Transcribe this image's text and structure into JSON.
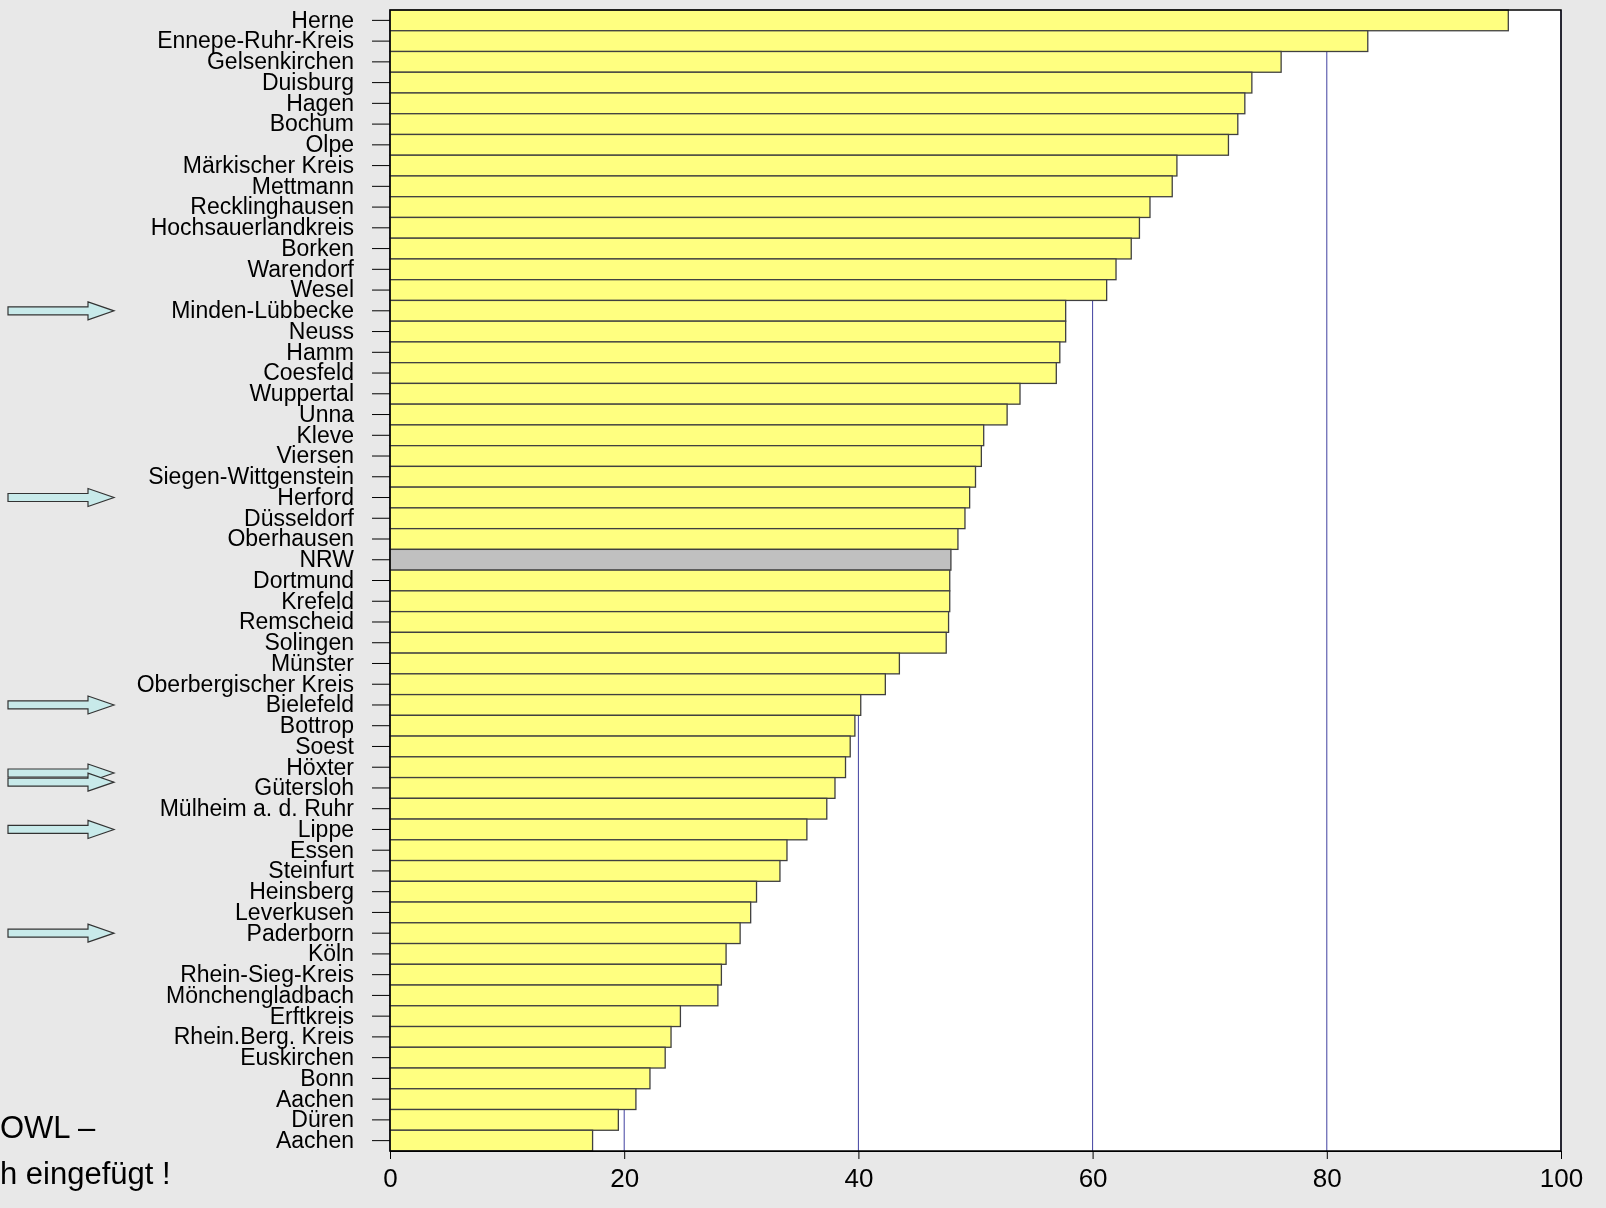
{
  "chart_data": {
    "type": "bar",
    "orientation": "horizontal",
    "categories": [
      "Herne",
      "Ennepe-Ruhr-Kreis",
      "Gelsenkirchen",
      "Duisburg",
      "Hagen",
      "Bochum",
      "Olpe",
      "Märkischer Kreis",
      "Mettmann",
      "Recklinghausen",
      "Hochsauerlandkreis",
      "Borken",
      "Warendorf",
      "Wesel",
      "Minden-Lübbecke",
      "Neuss",
      "Hamm",
      "Coesfeld",
      "Wuppertal",
      "Unna",
      "Kleve",
      "Viersen",
      "Siegen-Wittgenstein",
      "Herford",
      "Düsseldorf",
      "Oberhausen",
      "NRW",
      "Dortmund",
      "Krefeld",
      "Remscheid",
      "Solingen",
      "Münster",
      "Oberbergischer Kreis",
      "Bielefeld",
      "Bottrop",
      "Soest",
      "Höxter",
      "Gütersloh",
      "Mülheim a. d. Ruhr",
      "Lippe",
      "Essen",
      "Steinfurt",
      "Heinsberg",
      "Leverkusen",
      "Paderborn",
      "Köln",
      "Rhein-Sieg-Kreis",
      "Mönchengladbach",
      "Erftkreis",
      "Rhein.Berg. Kreis",
      "Euskirchen",
      "Bonn",
      "Aachen",
      "Düren",
      "Aachen"
    ],
    "values": [
      95.5,
      83.5,
      76.1,
      73.6,
      73.0,
      72.4,
      71.6,
      67.2,
      66.8,
      64.9,
      64.0,
      63.3,
      62.0,
      61.2,
      57.7,
      57.7,
      57.2,
      56.9,
      53.8,
      52.7,
      50.7,
      50.5,
      50.0,
      49.5,
      49.1,
      48.5,
      47.9,
      47.8,
      47.8,
      47.7,
      47.5,
      43.5,
      42.3,
      40.2,
      39.7,
      39.3,
      38.9,
      38.0,
      37.3,
      35.6,
      33.9,
      33.3,
      31.3,
      30.8,
      29.9,
      28.7,
      28.3,
      28.0,
      24.8,
      24.0,
      23.5,
      22.2,
      21.0,
      19.5,
      17.3
    ],
    "colors": [
      "#ffff80",
      "#ffff80",
      "#ffff80",
      "#ffff80",
      "#ffff80",
      "#ffff80",
      "#ffff80",
      "#ffff80",
      "#ffff80",
      "#ffff80",
      "#ffff80",
      "#ffff80",
      "#ffff80",
      "#ffff80",
      "#ffff80",
      "#ffff80",
      "#ffff80",
      "#ffff80",
      "#ffff80",
      "#ffff80",
      "#ffff80",
      "#ffff80",
      "#ffff80",
      "#ffff80",
      "#ffff80",
      "#ffff80",
      "#c0c0c0",
      "#ffff80",
      "#ffff80",
      "#ffff80",
      "#ffff80",
      "#ffff80",
      "#ffff80",
      "#ffff80",
      "#ffff80",
      "#ffff80",
      "#ffff80",
      "#ffff80",
      "#ffff80",
      "#ffff80",
      "#ffff80",
      "#ffff80",
      "#ffff80",
      "#ffff80",
      "#ffff80",
      "#ffff80",
      "#ffff80",
      "#ffff80",
      "#ffff80",
      "#ffff80",
      "#ffff80",
      "#ffff80",
      "#ffff80",
      "#ffff80",
      "#ffff80"
    ],
    "xlim": [
      0,
      100
    ],
    "xticks": [
      0,
      20,
      40,
      60,
      80,
      100
    ],
    "grid": "x",
    "annotations": [
      "OWL –",
      "h eingefügt !"
    ]
  }
}
